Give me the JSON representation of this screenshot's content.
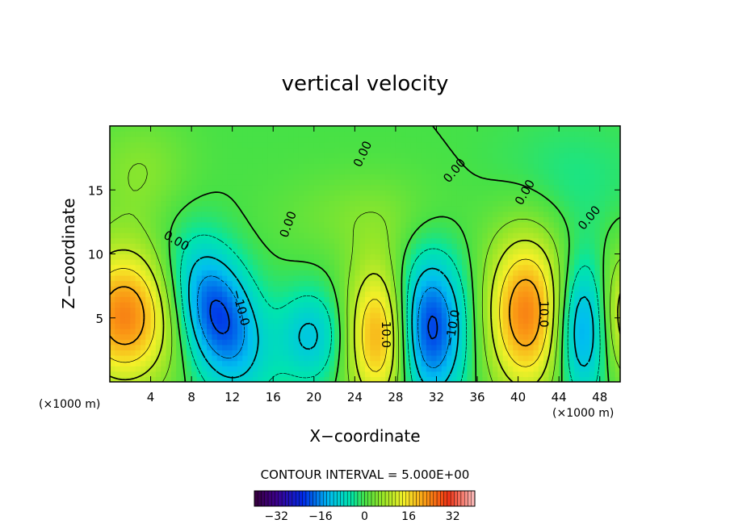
{
  "chart_data": {
    "type": "heatmap",
    "title": "vertical velocity",
    "xlabel": "X−coordinate",
    "ylabel": "Z−coordinate",
    "x_unit_left": "(×1000 m)",
    "x_unit_right": "(×1000 m)",
    "xlim": [
      0,
      50
    ],
    "ylim": [
      0,
      20
    ],
    "x_ticks": [
      {
        "value": 4,
        "label": "4"
      },
      {
        "value": 8,
        "label": "8"
      },
      {
        "value": 12,
        "label": "12"
      },
      {
        "value": 16,
        "label": "16"
      },
      {
        "value": 20,
        "label": "20"
      },
      {
        "value": 24,
        "label": "24"
      },
      {
        "value": 28,
        "label": "28"
      },
      {
        "value": 32,
        "label": "32"
      },
      {
        "value": 36,
        "label": "36"
      },
      {
        "value": 40,
        "label": "40"
      },
      {
        "value": 44,
        "label": "44"
      },
      {
        "value": 48,
        "label": "48"
      }
    ],
    "y_ticks": [
      {
        "value": 5,
        "label": "5"
      },
      {
        "value": 10,
        "label": "10"
      },
      {
        "value": 15,
        "label": "15"
      }
    ],
    "contour_interval_text": "CONTOUR INTERVAL = 5.000E+00",
    "colorbar": {
      "range": [
        -40,
        40
      ],
      "ticks": [
        {
          "value": -32,
          "label": "−32"
        },
        {
          "value": -16,
          "label": "−16"
        },
        {
          "value": 0,
          "label": "0"
        },
        {
          "value": 16,
          "label": "16"
        },
        {
          "value": 32,
          "label": "32"
        }
      ]
    },
    "contour_labels": [
      {
        "x": 6.5,
        "z": 11.0,
        "text": "0.00",
        "angle": 30
      },
      {
        "x": 17.5,
        "z": 12.3,
        "text": "0.00",
        "angle": -70
      },
      {
        "x": 24.8,
        "z": 17.8,
        "text": "0.00",
        "angle": -65
      },
      {
        "x": 33.8,
        "z": 16.5,
        "text": "0.00",
        "angle": -50
      },
      {
        "x": 40.7,
        "z": 14.8,
        "text": "0.00",
        "angle": -60
      },
      {
        "x": 47.0,
        "z": 12.8,
        "text": "0.00",
        "angle": -50
      },
      {
        "x": 12.8,
        "z": 5.8,
        "text": "−10.0",
        "angle": 75
      },
      {
        "x": 27.0,
        "z": 3.7,
        "text": "10.0",
        "angle": 90
      },
      {
        "x": 33.6,
        "z": 4.2,
        "text": "−10.0",
        "angle": -80
      },
      {
        "x": 42.5,
        "z": 5.3,
        "text": "10.0",
        "angle": 90
      }
    ],
    "cells": [
      {
        "x": 1.5,
        "z": 5.2,
        "sx": 3.5,
        "sz": 3.8,
        "a": 24
      },
      {
        "x": 10.5,
        "z": 5.2,
        "sx": 2.6,
        "sz": 4.2,
        "a": -22,
        "rot": -28
      },
      {
        "x": 19.8,
        "z": 3.6,
        "sx": 2.4,
        "sz": 2.6,
        "a": -11
      },
      {
        "x": 26.6,
        "z": 3.7,
        "sx": 2.4,
        "sz": 4.0,
        "a": 24
      },
      {
        "x": 31.0,
        "z": 4.2,
        "sx": 2.6,
        "sz": 4.0,
        "a": -24
      },
      {
        "x": 40.8,
        "z": 5.4,
        "sx": 2.8,
        "sz": 4.4,
        "a": 24
      },
      {
        "x": 46.2,
        "z": 4.2,
        "sx": 1.8,
        "sz": 3.8,
        "a": -17
      },
      {
        "x": 50.3,
        "z": 5.2,
        "sx": 1.6,
        "sz": 3.5,
        "a": 13
      },
      {
        "x": 3.0,
        "z": 16.5,
        "sx": 3.5,
        "sz": 3.0,
        "a": 5
      },
      {
        "x": 25.0,
        "z": 13.0,
        "sx": 6.0,
        "sz": 2.5,
        "a": 4
      },
      {
        "x": 45.0,
        "z": 16.0,
        "sx": 5.0,
        "sz": 3.0,
        "a": -3
      }
    ]
  }
}
